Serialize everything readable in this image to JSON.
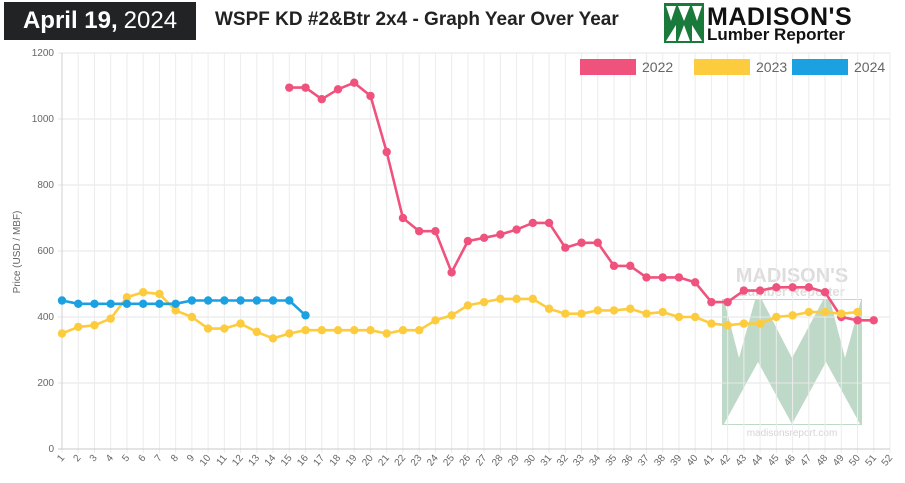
{
  "header": {
    "date_bold": "April 19,",
    "date_year": "2024",
    "title": "WSPF KD #2&Btr 2x4 - Graph Year Over Year"
  },
  "logo": {
    "line1": "MADISON'S",
    "line2": "Lumber Reporter",
    "color": "#1a7a3c"
  },
  "watermark": {
    "line1": "MADISON'S",
    "line2": "Lumber Reporter",
    "url": "madisonsreport.com"
  },
  "chart_data": {
    "type": "line",
    "title": "WSPF KD #2&Btr 2x4 - Graph Year Over Year",
    "xlabel": "",
    "ylabel": "Price (USD / MBF)",
    "x": [
      1,
      2,
      3,
      4,
      5,
      6,
      7,
      8,
      9,
      10,
      11,
      12,
      13,
      14,
      15,
      16,
      17,
      18,
      19,
      20,
      21,
      22,
      23,
      24,
      25,
      26,
      27,
      28,
      29,
      30,
      31,
      32,
      33,
      34,
      35,
      36,
      37,
      38,
      39,
      40,
      41,
      42,
      43,
      44,
      45,
      46,
      47,
      48,
      49,
      50,
      51,
      52
    ],
    "ylim": [
      0,
      1200
    ],
    "yticks": [
      0,
      200,
      400,
      600,
      800,
      1000,
      1200
    ],
    "grid": true,
    "legend_position": "top-right",
    "series": [
      {
        "name": "2022",
        "color": "#f0527e",
        "x": [
          15,
          16,
          17,
          18,
          19,
          20,
          21,
          22,
          23,
          24,
          25,
          26,
          27,
          28,
          29,
          30,
          31,
          32,
          33,
          34,
          35,
          36,
          37,
          38,
          39,
          40,
          41,
          42,
          43,
          44,
          45,
          46,
          47,
          48,
          49,
          50,
          51
        ],
        "values": [
          1095,
          1095,
          1060,
          1090,
          1110,
          1070,
          900,
          700,
          660,
          660,
          535,
          630,
          640,
          650,
          665,
          685,
          685,
          610,
          625,
          625,
          555,
          555,
          520,
          520,
          520,
          505,
          445,
          445,
          480,
          480,
          490,
          490,
          490,
          475,
          400,
          390,
          390
        ]
      },
      {
        "name": "2023",
        "color": "#fdcc3e",
        "x": [
          1,
          2,
          3,
          4,
          5,
          6,
          7,
          8,
          9,
          10,
          11,
          12,
          13,
          14,
          15,
          16,
          17,
          18,
          19,
          20,
          21,
          22,
          23,
          24,
          25,
          26,
          27,
          28,
          29,
          30,
          31,
          32,
          33,
          34,
          35,
          36,
          37,
          38,
          39,
          40,
          41,
          42,
          43,
          44,
          45,
          46,
          47,
          48,
          49,
          50
        ],
        "values": [
          350,
          370,
          375,
          395,
          460,
          475,
          470,
          420,
          400,
          365,
          365,
          380,
          355,
          335,
          350,
          360,
          360,
          360,
          360,
          360,
          350,
          360,
          360,
          390,
          405,
          435,
          445,
          455,
          455,
          455,
          425,
          410,
          410,
          420,
          420,
          425,
          410,
          415,
          400,
          400,
          380,
          375,
          380,
          380,
          400,
          405,
          415,
          415,
          410,
          415
        ]
      },
      {
        "name": "2024",
        "color": "#1ba1e2",
        "x": [
          1,
          2,
          3,
          4,
          5,
          6,
          7,
          8,
          9,
          10,
          11,
          12,
          13,
          14,
          15,
          16
        ],
        "values": [
          450,
          440,
          440,
          440,
          440,
          440,
          440,
          440,
          450,
          450,
          450,
          450,
          450,
          450,
          450,
          405
        ]
      }
    ]
  }
}
